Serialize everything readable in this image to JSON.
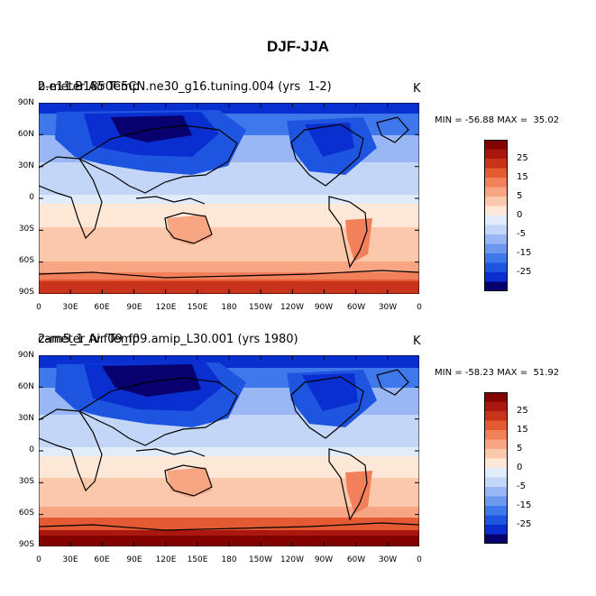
{
  "title": "DJF-JJA",
  "colorbar": {
    "colors": [
      "#08006e",
      "#0a2fd0",
      "#1e55e0",
      "#3f78ea",
      "#6c98f0",
      "#98b7f4",
      "#c3d6f8",
      "#e1ecfb",
      "#fde7d6",
      "#fcc8ac",
      "#f8a584",
      "#f2805a",
      "#e45a32",
      "#c9331b",
      "#a9170e",
      "#820300"
    ],
    "labels": [
      "25",
      "15",
      "5",
      "0",
      "-5",
      "-15",
      "-25"
    ]
  },
  "x_ticks": [
    "0",
    "30E",
    "60E",
    "90E",
    "120E",
    "150E",
    "180",
    "150W",
    "120W",
    "90W",
    "60W",
    "30W",
    "0"
  ],
  "y_ticks": [
    "90N",
    "60N",
    "30N",
    "0",
    "30S",
    "60S",
    "90S"
  ],
  "panels": [
    {
      "variable": "2-meter Air Temp",
      "case": "b.e11.B1850C5CN.ne30_g16.tuning.004 (yrs  1-2)",
      "unit": "K",
      "min_max": "MIN = -56.88 MAX =  35.02"
    },
    {
      "variable": "2-meter Air Temp",
      "case": "cam5_1_fv.f09_f09.amip_L30.001 (yrs 1980)",
      "unit": "K",
      "min_max": "MIN = -58.23 MAX =  51.92"
    }
  ]
}
